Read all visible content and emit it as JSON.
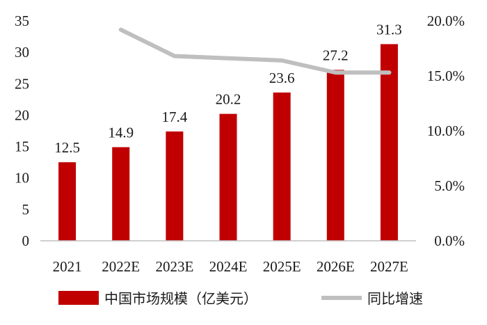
{
  "chart_data": {
    "type": "bar",
    "categories": [
      "2021",
      "2022E",
      "2023E",
      "2024E",
      "2025E",
      "2026E",
      "2027E"
    ],
    "series": [
      {
        "name": "中国市场规模（亿美元）",
        "type": "bar",
        "axis": "left",
        "color": "#c00000",
        "values": [
          12.5,
          14.9,
          17.4,
          20.2,
          23.6,
          27.2,
          31.3
        ],
        "labels": [
          "12.5",
          "14.9",
          "17.4",
          "20.2",
          "23.6",
          "27.2",
          "31.3"
        ]
      },
      {
        "name": "同比增速",
        "type": "line",
        "axis": "right",
        "color": "#bfbfbf",
        "values": [
          null,
          19.2,
          16.8,
          16.6,
          16.4,
          15.3,
          15.3
        ]
      }
    ],
    "y_left": {
      "min": 0,
      "max": 35,
      "ticks": [
        "0",
        "5",
        "10",
        "15",
        "20",
        "25",
        "30",
        "35"
      ]
    },
    "y_right": {
      "min": 0,
      "max": 20,
      "ticks": [
        "0.0%",
        "5.0%",
        "10.0%",
        "15.0%",
        "20.0%"
      ]
    },
    "grid": false,
    "legend": "bottom"
  }
}
